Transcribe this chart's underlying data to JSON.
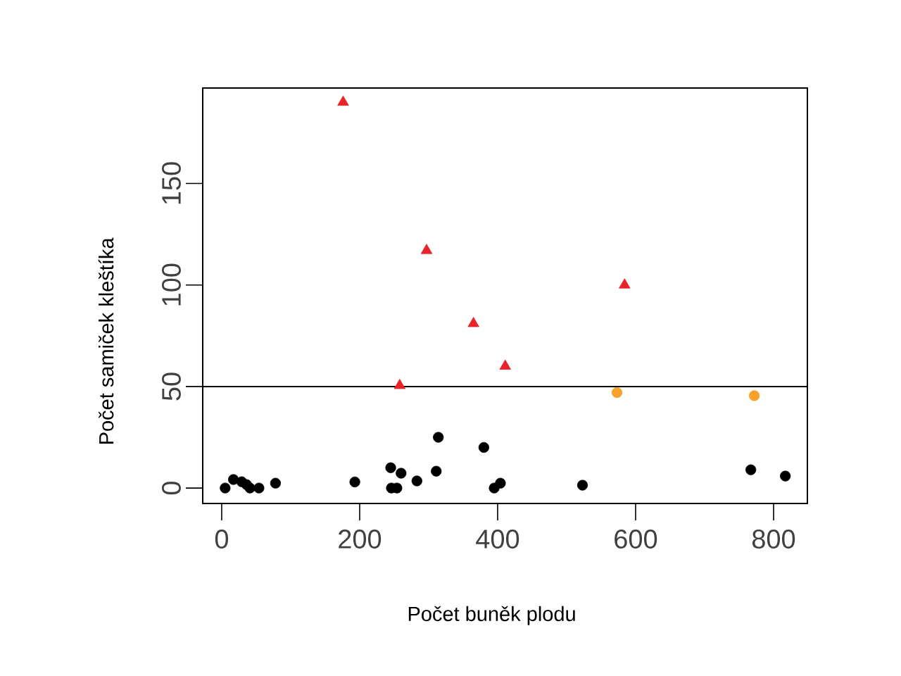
{
  "chart_data": {
    "type": "scatter",
    "xlabel": "Počet buněk plodu",
    "ylabel": "Počet samiček kleštíka",
    "xlim": [
      -27.5,
      849
    ],
    "ylim": [
      -7.6,
      197
    ],
    "xticks": [
      0,
      200,
      400,
      600,
      800
    ],
    "yticks": [
      0,
      50,
      100,
      150
    ],
    "grid": false,
    "ref_lines": [
      {
        "axis": "y",
        "value": 50,
        "color": "#000000",
        "line_style": "solid"
      }
    ],
    "series": [
      {
        "color": "#000000",
        "marker": "circle",
        "x": [
          17,
          29,
          36,
          78,
          193,
          245,
          260,
          283,
          311,
          314,
          380,
          404,
          523,
          767,
          817
        ],
        "values": [
          4.2,
          3.1,
          1.7,
          2.4,
          3,
          10,
          7.3,
          3.5,
          8.3,
          25,
          20,
          2.4,
          1.4,
          9,
          5.9
        ]
      },
      {
        "color": "#000000",
        "marker": "circle",
        "x": [
          5,
          41,
          54,
          246,
          254,
          395
        ],
        "values": [
          0,
          0,
          0,
          0,
          0,
          0
        ]
      },
      {
        "color": "#f7a12b",
        "marker": "circle",
        "x": [
          573,
          772
        ],
        "values": [
          47,
          45.5
        ]
      },
      {
        "color": "#e8232a",
        "marker": "triangle",
        "x": [
          176,
          297,
          365,
          411,
          258,
          584
        ],
        "values": [
          190,
          117,
          81,
          60,
          50.5,
          100
        ]
      }
    ]
  }
}
